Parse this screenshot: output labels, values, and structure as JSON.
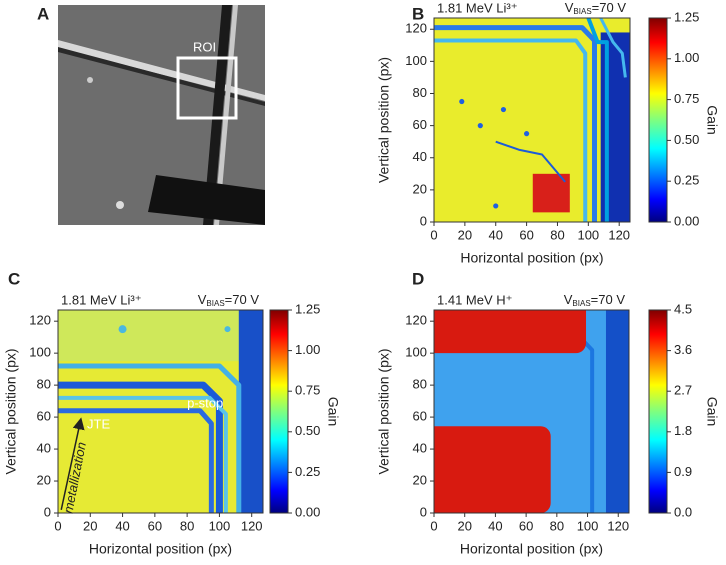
{
  "image_panel": {
    "panel_label": "A",
    "roi_label": "ROI"
  },
  "chart_data": [
    {
      "type": "heatmap",
      "panel_label": "B",
      "title": "1.81 MeV Li³⁺",
      "bias": {
        "symbol": "V",
        "subscript": "BIAS",
        "text": "=70 V"
      },
      "xlabel": "Horizontal position (px)",
      "ylabel": "Vertical position (px)",
      "xlim": [
        0,
        127
      ],
      "ylim": [
        0,
        127
      ],
      "xticks": [
        0,
        20,
        40,
        60,
        80,
        100,
        120
      ],
      "yticks": [
        0,
        20,
        40,
        60,
        80,
        100,
        120
      ],
      "colorbar": {
        "label": "Gain",
        "lim": [
          0,
          1.25
        ],
        "ticks": [
          {
            "value": 0,
            "label": "0.00"
          },
          {
            "value": 0.25,
            "label": "0.25"
          },
          {
            "value": 0.5,
            "label": "0.50"
          },
          {
            "value": 0.75,
            "label": "0.75"
          },
          {
            "value": 1,
            "label": "1.00"
          },
          1.25
        ]
      }
    },
    {
      "type": "heatmap",
      "panel_label": "C",
      "title": "1.81 MeV Li³⁺",
      "bias": {
        "symbol": "V",
        "subscript": "BIAS",
        "text": "=70 V"
      },
      "xlabel": "Horizontal position (px)",
      "ylabel": "Vertical position (px)",
      "xlim": [
        0,
        127
      ],
      "ylim": [
        0,
        127
      ],
      "xticks": [
        0,
        20,
        40,
        60,
        80,
        100,
        120
      ],
      "yticks": [
        0,
        20,
        40,
        60,
        80,
        100,
        120
      ],
      "annotations": [
        "JTE",
        "p-stop",
        "metallization"
      ],
      "colorbar": {
        "label": "Gain",
        "lim": [
          0,
          1.25
        ],
        "ticks": [
          {
            "value": 0,
            "label": "0.00"
          },
          {
            "value": 0.25,
            "label": "0.25"
          },
          {
            "value": 0.5,
            "label": "0.50"
          },
          {
            "value": 0.75,
            "label": "0.75"
          },
          {
            "value": 1,
            "label": "1.00"
          },
          1.25
        ]
      }
    },
    {
      "type": "heatmap",
      "panel_label": "D",
      "title": "1.41 MeV H⁺",
      "bias": {
        "symbol": "V",
        "subscript": "BIAS",
        "text": "=70 V"
      },
      "xlabel": "Horizontal position (px)",
      "ylabel": "Vertical position (px)",
      "xlim": [
        0,
        127
      ],
      "ylim": [
        0,
        127
      ],
      "xticks": [
        0,
        20,
        40,
        60,
        80,
        100,
        120
      ],
      "yticks": [
        0,
        20,
        40,
        60,
        80,
        100,
        120
      ],
      "colorbar": {
        "label": "Gain",
        "lim": [
          0,
          4.5
        ],
        "ticks": [
          {
            "value": 0,
            "label": "0.0"
          },
          0.9,
          1.8,
          2.7,
          3.6,
          4.5
        ]
      }
    }
  ]
}
